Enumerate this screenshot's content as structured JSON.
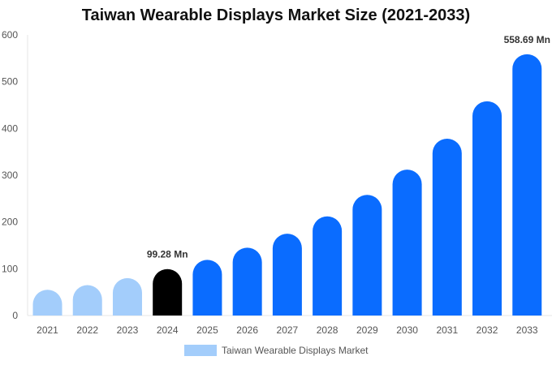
{
  "chart_data": {
    "type": "bar",
    "title": "Taiwan Wearable Displays Market Size (2021-2033)",
    "xlabel": "",
    "ylabel": "",
    "ylim": [
      0,
      600
    ],
    "yticks": [
      0,
      100,
      200,
      300,
      400,
      500,
      600
    ],
    "categories": [
      "2021",
      "2022",
      "2023",
      "2024",
      "2025",
      "2026",
      "2027",
      "2028",
      "2029",
      "2030",
      "2031",
      "2032",
      "2033"
    ],
    "series": [
      {
        "name": "Taiwan Wearable Displays Market",
        "values": [
          55,
          65,
          80,
          99.28,
          119,
          145,
          175,
          212,
          258,
          312,
          378,
          458,
          558.69
        ]
      }
    ],
    "bar_colors": [
      "#a3cdfb",
      "#a3cdfb",
      "#a3cdfb",
      "#000000",
      "#0a6cff",
      "#0a6cff",
      "#0a6cff",
      "#0a6cff",
      "#0a6cff",
      "#0a6cff",
      "#0a6cff",
      "#0a6cff",
      "#0a6cff"
    ],
    "data_labels": [
      {
        "category": "2024",
        "text": "99.28 Mn"
      },
      {
        "category": "2033",
        "text": "558.69 Mn"
      }
    ],
    "legend": {
      "position": "bottom-center",
      "color": "#a3cdfb",
      "label": "Taiwan Wearable Displays Market"
    },
    "grid": false
  }
}
